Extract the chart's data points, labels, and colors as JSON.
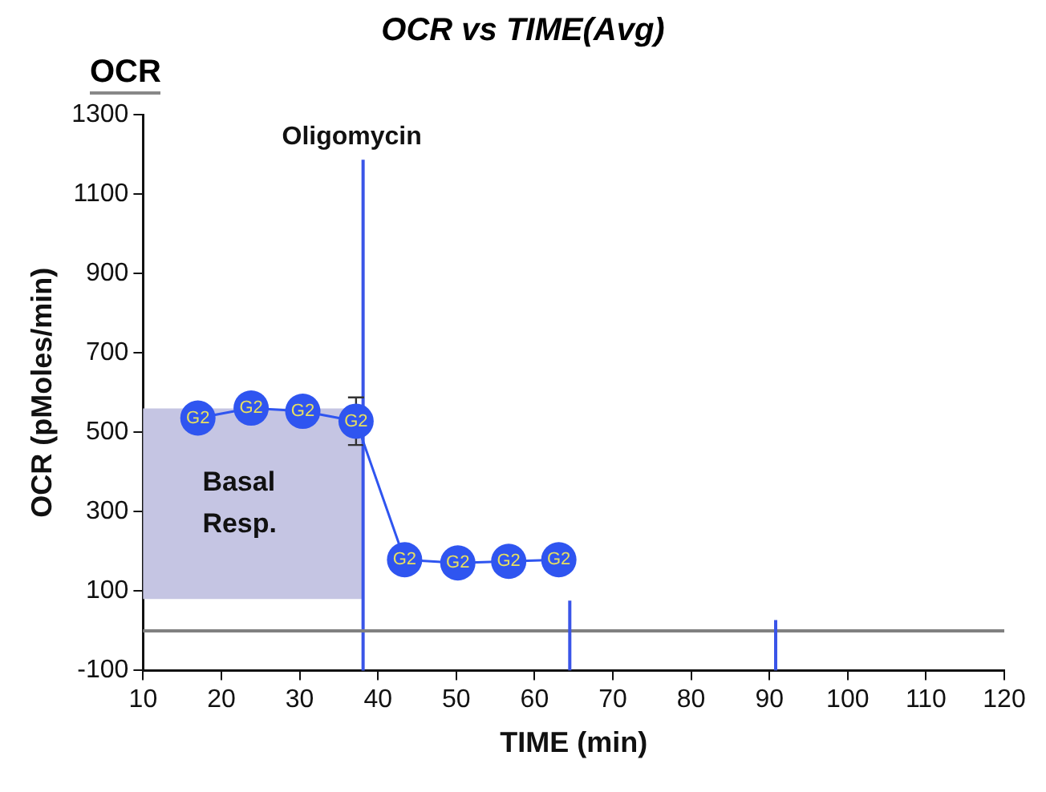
{
  "chart_data": {
    "type": "line",
    "title": "OCR vs TIME(Avg)",
    "subtitle": "OCR",
    "xlabel": "TIME (min)",
    "ylabel": "OCR (pMoles/min)",
    "xlim": [
      10,
      120
    ],
    "xticks": [
      10,
      20,
      30,
      40,
      50,
      60,
      70,
      80,
      90,
      100,
      110,
      120
    ],
    "ylim": [
      -100,
      1300
    ],
    "yticks": [
      -100,
      100,
      300,
      500,
      700,
      900,
      1100,
      1300
    ],
    "grid": false,
    "legend": false,
    "marker": "circle",
    "line_style": "solid",
    "series": [
      {
        "name": "G2",
        "color": "#2f55f0",
        "x": [
          17,
          23.8,
          30.4,
          37.2,
          43.4,
          50.2,
          56.7,
          63.1
        ],
        "values": [
          536,
          561,
          553,
          528,
          179,
          171,
          175,
          179
        ],
        "errors": [
          null,
          null,
          null,
          60,
          null,
          null,
          null,
          null
        ]
      },
      {
        "type": "line",
        "color": "#3a55e8",
        "marker": "none",
        "x": [
          64.5,
          64.5
        ],
        "values": [
          -100,
          76
        ]
      },
      {
        "type": "line",
        "color": "#3a55e8",
        "marker": "none",
        "x": [
          90.8,
          90.8
        ],
        "values": [
          -100,
          27
        ]
      }
    ],
    "ref_lines": [
      {
        "axis": "x",
        "value": 38.1,
        "label": "Oligomycin",
        "color": "#3a55e8"
      },
      {
        "axis": "y",
        "value": 0,
        "color": "#808080"
      }
    ],
    "bands": [
      {
        "axis": "y",
        "from": 80,
        "to": 560,
        "label": "Basal Resp.",
        "color": "#c5c5e3"
      }
    ]
  }
}
